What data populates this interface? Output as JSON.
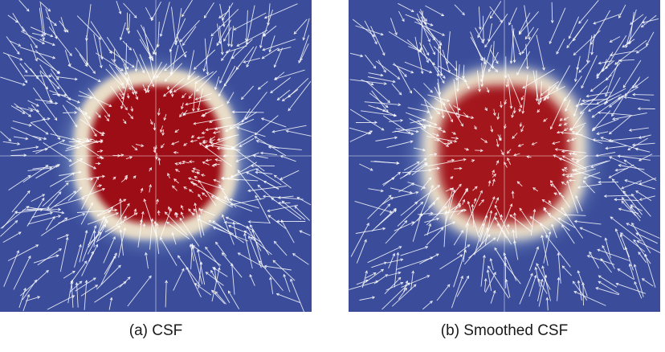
{
  "panels": [
    {
      "caption": "(a) CSF",
      "core_color": "#9c1017",
      "background_color": "#3b4d9a",
      "glow_color": "#b6d3ea",
      "vector_color": "#ffffff"
    },
    {
      "caption": "(b) Smoothed CSF",
      "core_color": "#a3141a",
      "background_color": "#3b4d9a",
      "glow_color": "#b6d3ea",
      "vector_color": "#ffffff"
    }
  ]
}
